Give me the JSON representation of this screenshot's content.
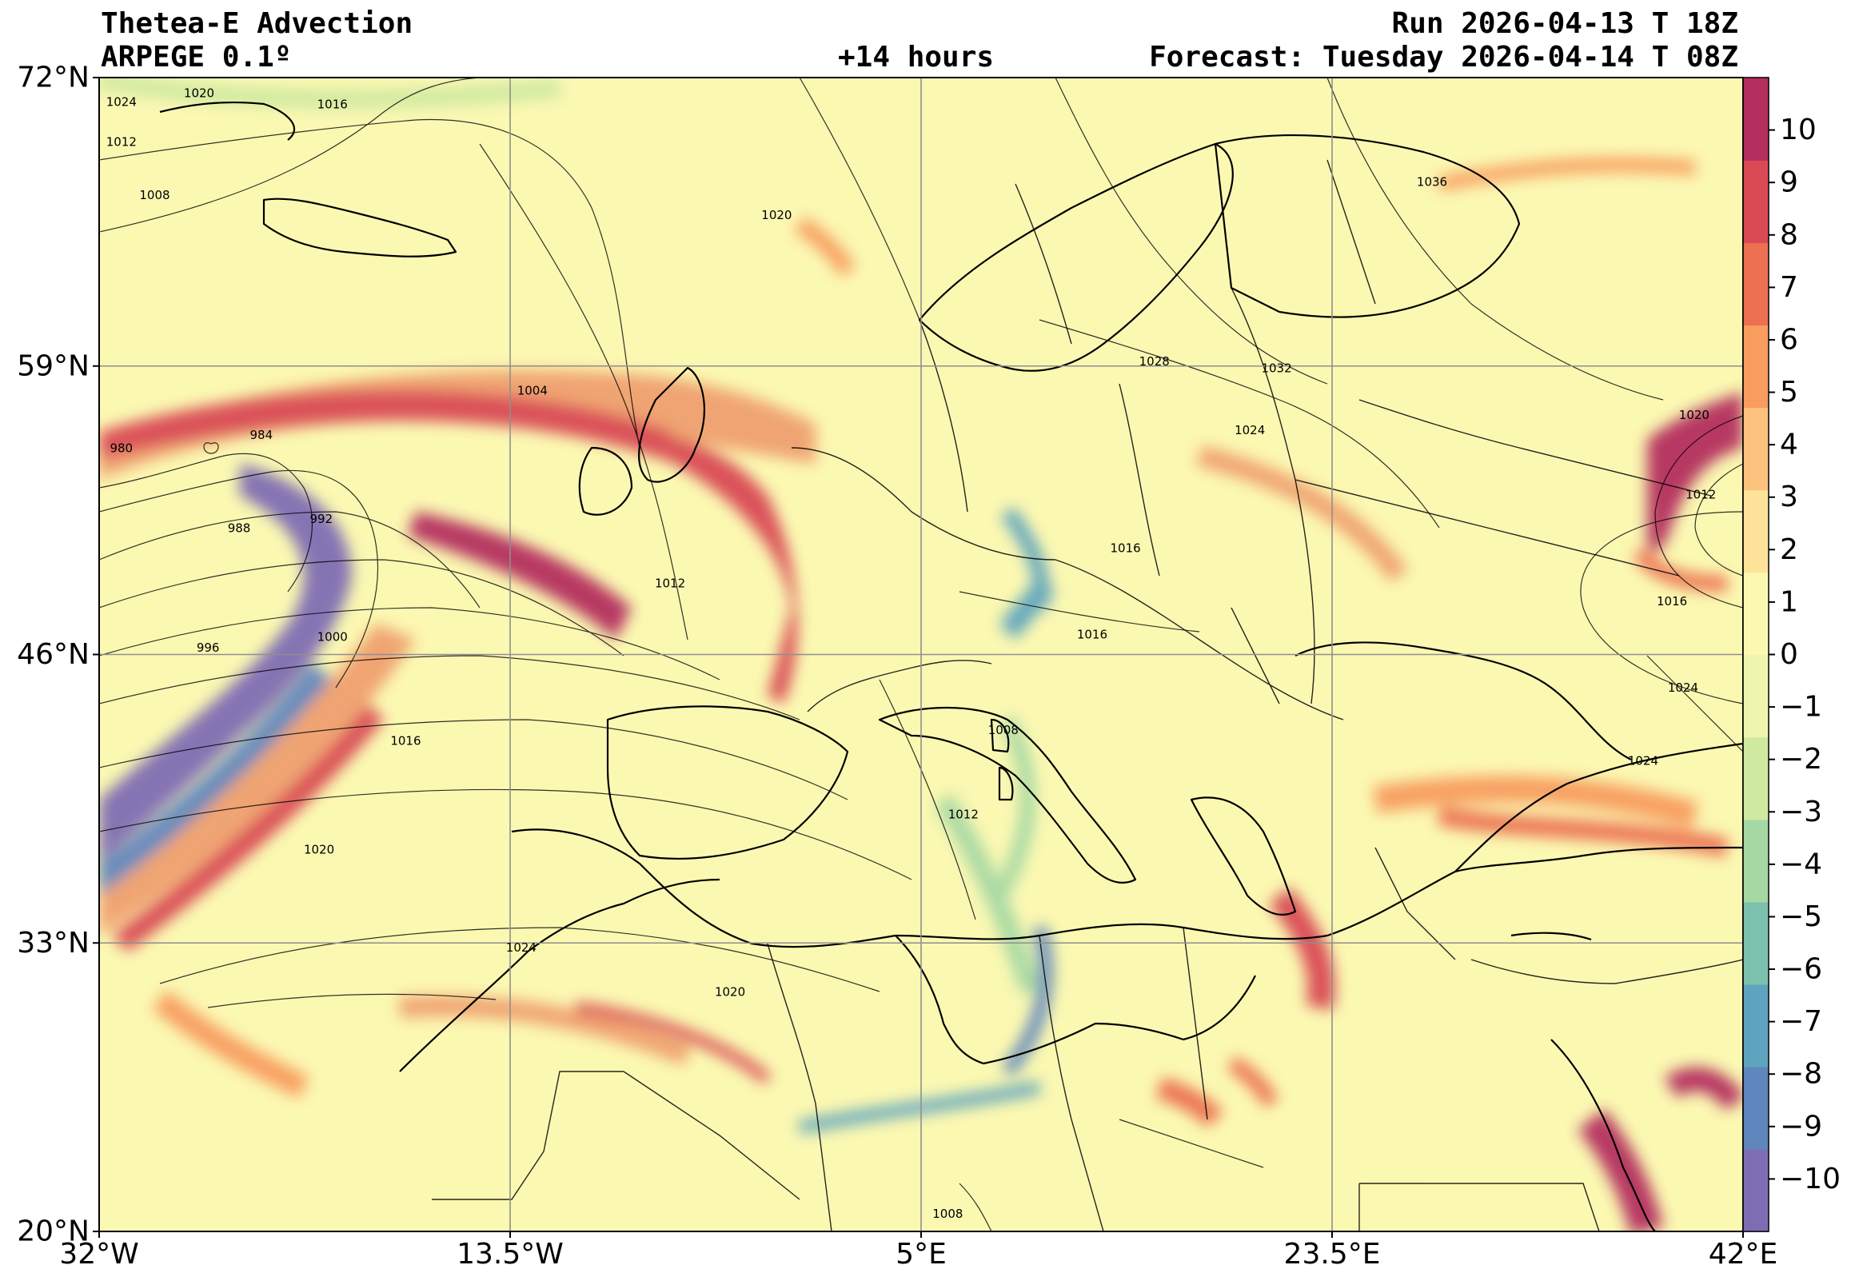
{
  "header": {
    "title": "Thetea-E Advection",
    "model": "ARPEGE 0.1º",
    "lead_time": "+14 hours",
    "run": "Run 2026-04-13 T 18Z",
    "forecast": "Forecast: Tuesday 2026-04-14 T 08Z"
  },
  "map": {
    "projection": "plate-carree",
    "lon_range": [
      -32,
      42
    ],
    "lat_range": [
      20,
      72
    ],
    "lon_ticks": [
      {
        "value": -32,
        "label": "32°W"
      },
      {
        "value": -13.5,
        "label": "13.5°W"
      },
      {
        "value": 5,
        "label": "5°E"
      },
      {
        "value": 23.5,
        "label": "23.5°E"
      },
      {
        "value": 42,
        "label": "42°E"
      }
    ],
    "lat_ticks": [
      {
        "value": 72,
        "label": "72°N"
      },
      {
        "value": 59,
        "label": "59°N"
      },
      {
        "value": 46,
        "label": "46°N"
      },
      {
        "value": 33,
        "label": "33°N"
      },
      {
        "value": 20,
        "label": "20°N"
      }
    ],
    "grid": true,
    "background_color": "#fbf8b2",
    "isobar_labels": [
      {
        "text": "1024",
        "lon": -31,
        "lat": 70.9
      },
      {
        "text": "1020",
        "lon": -27.5,
        "lat": 71.3
      },
      {
        "text": "1016",
        "lon": -21.5,
        "lat": 70.8
      },
      {
        "text": "1012",
        "lon": -31,
        "lat": 69.1
      },
      {
        "text": "1008",
        "lon": -29.5,
        "lat": 66.7
      },
      {
        "text": "1020",
        "lon": -1.5,
        "lat": 65.8
      },
      {
        "text": "1036",
        "lon": 28,
        "lat": 67.3
      },
      {
        "text": "1004",
        "lon": -12.5,
        "lat": 57.9
      },
      {
        "text": "1028",
        "lon": 15.5,
        "lat": 59.2
      },
      {
        "text": "1032",
        "lon": 21,
        "lat": 58.9
      },
      {
        "text": "1024",
        "lon": 19.8,
        "lat": 56.1
      },
      {
        "text": "980",
        "lon": -31,
        "lat": 55.3
      },
      {
        "text": "984",
        "lon": -24.7,
        "lat": 55.9
      },
      {
        "text": "988",
        "lon": -25.7,
        "lat": 51.7
      },
      {
        "text": "992",
        "lon": -22,
        "lat": 52.1
      },
      {
        "text": "996",
        "lon": -27.1,
        "lat": 46.3
      },
      {
        "text": "1000",
        "lon": -21.5,
        "lat": 46.8
      },
      {
        "text": "1012",
        "lon": -6.3,
        "lat": 49.2
      },
      {
        "text": "1016",
        "lon": 14.2,
        "lat": 50.8
      },
      {
        "text": "1016",
        "lon": 12.7,
        "lat": 46.9
      },
      {
        "text": "1016",
        "lon": -18.2,
        "lat": 42.1
      },
      {
        "text": "1008",
        "lon": 8.7,
        "lat": 42.6
      },
      {
        "text": "1012",
        "lon": 6.9,
        "lat": 38.8
      },
      {
        "text": "1020",
        "lon": -22.1,
        "lat": 37.2
      },
      {
        "text": "1024",
        "lon": -13,
        "lat": 32.8
      },
      {
        "text": "1020",
        "lon": -3.6,
        "lat": 30.8
      },
      {
        "text": "1008",
        "lon": 6.2,
        "lat": 20.8
      },
      {
        "text": "1020",
        "lon": 39.8,
        "lat": 56.8
      },
      {
        "text": "1012",
        "lon": 40.1,
        "lat": 53.2
      },
      {
        "text": "1016",
        "lon": 38.8,
        "lat": 48.4
      },
      {
        "text": "1024",
        "lon": 39.3,
        "lat": 44.5
      },
      {
        "text": "1024",
        "lon": 37.5,
        "lat": 41.2
      }
    ]
  },
  "colorbar": {
    "tick_labels": [
      "10",
      "9",
      "8",
      "7",
      "6",
      "5",
      "4",
      "3",
      "2",
      "1",
      "0",
      "−1",
      "−2",
      "−3",
      "−4",
      "−5",
      "−6",
      "−7",
      "−8",
      "−9",
      "−10"
    ],
    "range": [
      -11,
      11
    ],
    "colors": [
      "#7f6db4",
      "#5f86bd",
      "#5ea4bf",
      "#7cc1ad",
      "#a6d8a4",
      "#cfe9a0",
      "#edf6ac",
      "#fbf8b2",
      "#fde39a",
      "#fcc27d",
      "#f89c5f",
      "#ec7051",
      "#d94a55",
      "#b42f5e"
    ]
  }
}
